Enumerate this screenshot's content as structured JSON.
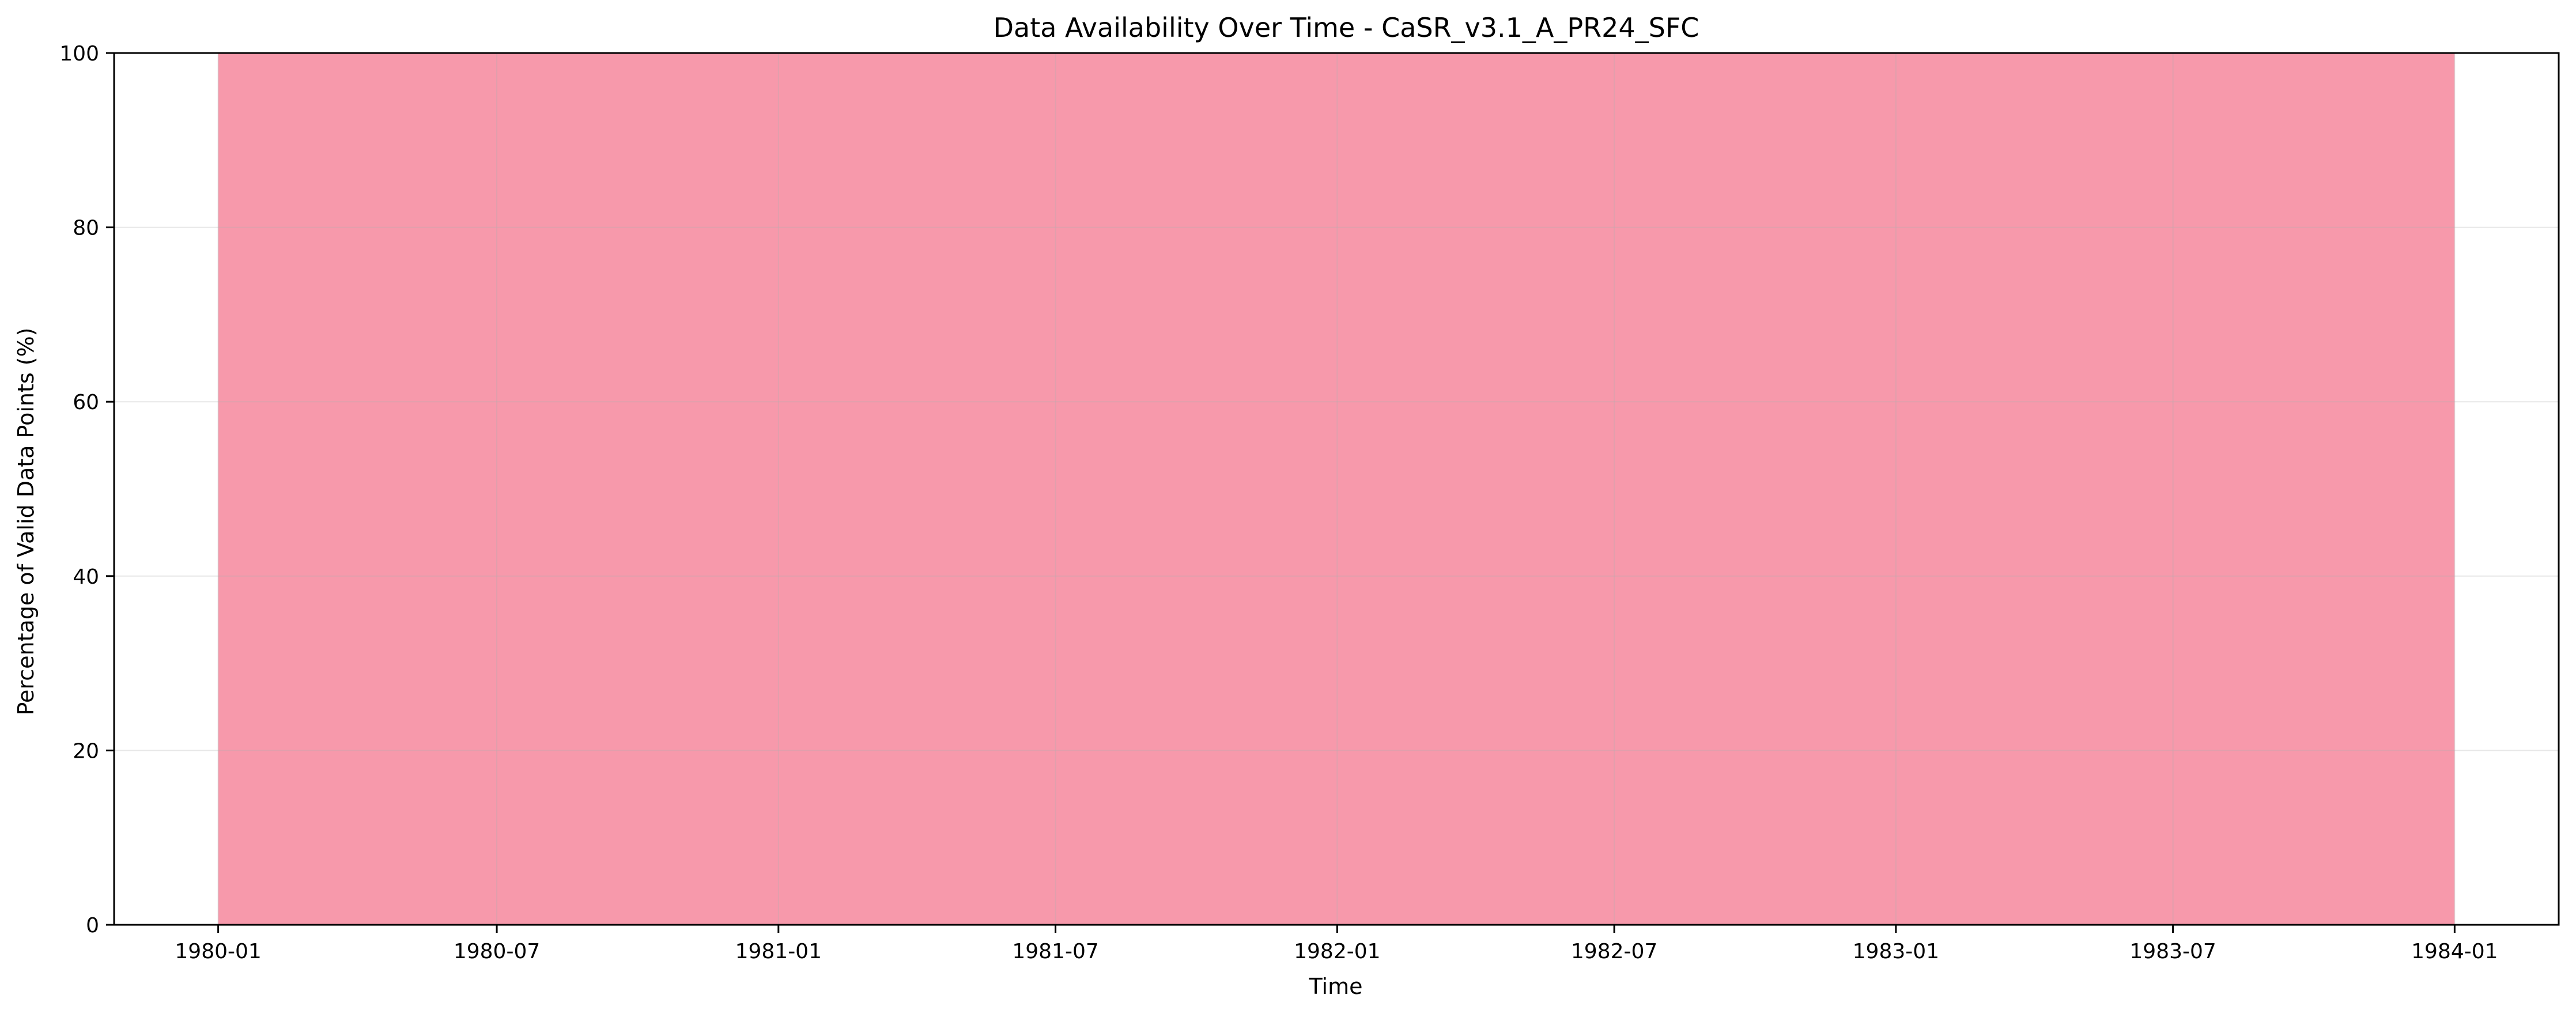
{
  "chart_data": {
    "type": "area",
    "title": "Data Availability Over Time - CaSR_v3.1_A_PR24_SFC",
    "xlabel": "Time",
    "ylabel": "Percentage of Valid Data Points (%)",
    "ylim": [
      0,
      100
    ],
    "xlim": [
      "1979-10-25",
      "1984-03-09"
    ],
    "x_ticks": [
      "1980-01",
      "1980-07",
      "1981-01",
      "1981-07",
      "1982-01",
      "1982-07",
      "1983-01",
      "1983-07",
      "1984-01"
    ],
    "y_ticks": [
      0,
      20,
      40,
      60,
      80,
      100
    ],
    "grid": true,
    "legend": "none",
    "fill_color": "#f799ab",
    "series": [
      {
        "x": [
          "1980-01-01",
          "1984-01-01"
        ],
        "values": [
          100,
          100
        ]
      }
    ]
  }
}
